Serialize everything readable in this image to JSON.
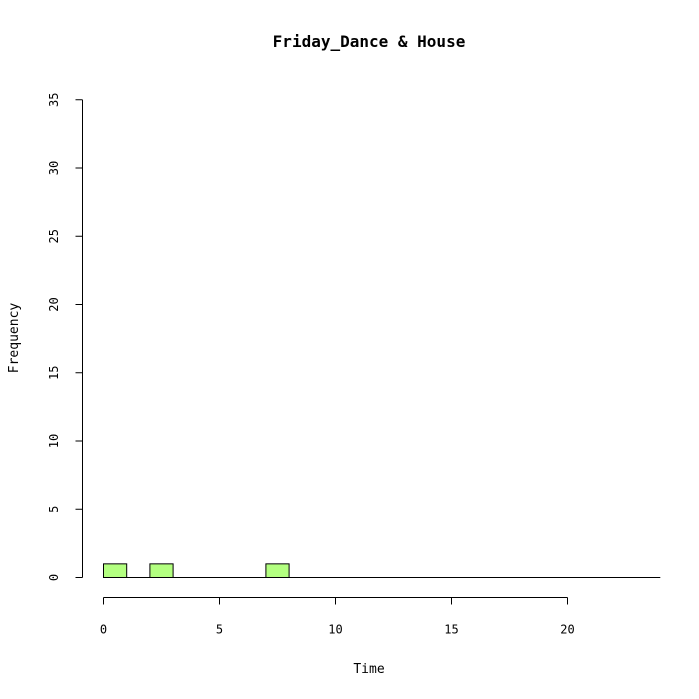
{
  "chart_data": {
    "type": "bar",
    "title": "Friday_Dance & House",
    "xlabel": "Time",
    "ylabel": "Frequency",
    "bin_width": 1,
    "x": [
      0,
      1,
      2,
      3,
      4,
      5,
      6,
      7,
      8,
      9,
      10,
      11,
      12,
      13,
      14,
      15,
      16,
      17,
      18,
      19,
      20,
      21,
      22,
      23
    ],
    "values": [
      1,
      0,
      1,
      0,
      0,
      0,
      0,
      1,
      0,
      0,
      0,
      0,
      0,
      0,
      0,
      0,
      0,
      0,
      0,
      0,
      0,
      0,
      0,
      0
    ],
    "xlim": [
      0,
      24
    ],
    "ylim": [
      0,
      35
    ],
    "xticks": [
      0,
      5,
      10,
      15,
      20
    ],
    "yticks": [
      0,
      5,
      10,
      15,
      20,
      25,
      30,
      35
    ],
    "bar_color": "#b3ff80",
    "grid": false,
    "legend": "none"
  }
}
